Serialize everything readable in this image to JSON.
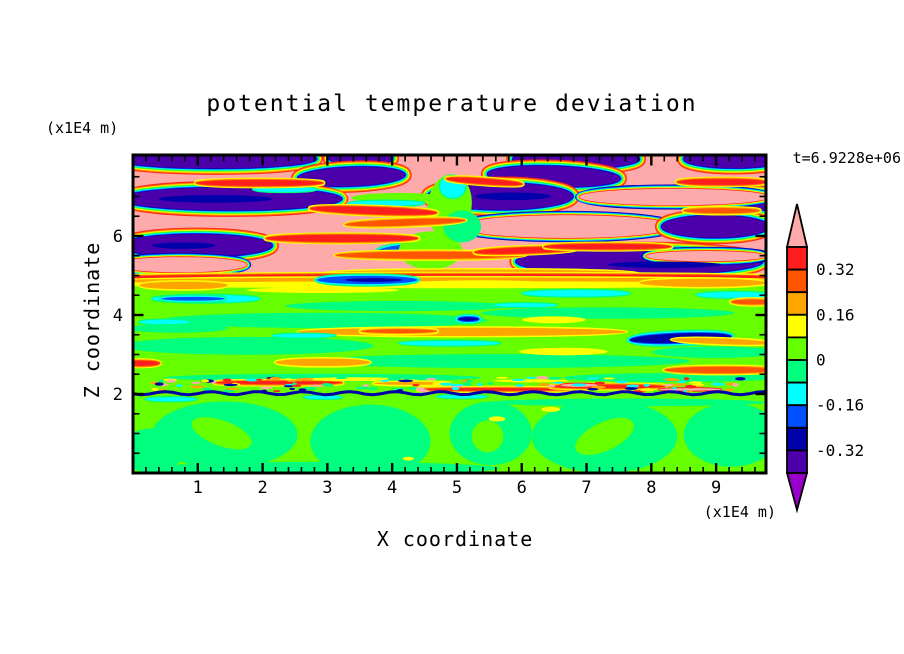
{
  "chart_data": {
    "type": "heatmap",
    "title": "potential temperature deviation",
    "xlabel": "X coordinate",
    "ylabel": "Z coordinate",
    "x_unit_label": "(x1E4 m)",
    "y_unit_label": "(x1E4 m)",
    "time_label": "t=6.9228e+06",
    "xlim": [
      0,
      9.77
    ],
    "ylim": [
      0,
      8.05
    ],
    "x_major_ticks": [
      1,
      2,
      3,
      4,
      5,
      6,
      7,
      8,
      9
    ],
    "x_minor_step": 0.2,
    "y_major_ticks": [
      2,
      4,
      6
    ],
    "y_minor_step": 0.5,
    "grid": false,
    "legend_position": "right-colorbar",
    "palette": {
      "over": "#ffaaaa",
      "red": "#ff1e1e",
      "orangered": "#ff5500",
      "orange": "#ffa500",
      "yellow": "#ffff00",
      "chartreuse": "#66ff00",
      "spring": "#00ff7f",
      "cyan": "#00ffff",
      "blue": "#0050ff",
      "navy": "#0000aa",
      "indigo": "#4b00ab",
      "under": "#9900cc"
    },
    "colorbar": {
      "levels": [
        0.4,
        0.32,
        0.24,
        0.16,
        0.08,
        0,
        -0.08,
        -0.16,
        -0.24,
        -0.32,
        -0.4
      ],
      "tick_labels": [
        "0.32",
        "0.16",
        "0",
        "-0.16",
        "-0.32"
      ],
      "segment_colors_top_to_bottom": [
        "red",
        "orangered",
        "orange",
        "yellow",
        "chartreuse",
        "spring",
        "cyan",
        "blue",
        "navy",
        "indigo"
      ],
      "over_arrow": "over",
      "under_arrow": "under"
    },
    "field": {
      "bases": [
        {
          "v0": 0.0,
          "v1": 0.41,
          "color": "over"
        },
        {
          "v0": 0.4,
          "v1": 1.0,
          "color": "chartreuse"
        }
      ],
      "shapes": [
        [
          "indigo",
          0.13,
          0.012,
          0.16,
          0.03,
          0
        ],
        [
          "indigo",
          0.36,
          0.01,
          0.05,
          0.022,
          0
        ],
        [
          "indigo",
          0.7,
          0.013,
          0.1,
          0.03,
          0
        ],
        [
          "indigo",
          0.95,
          0.013,
          0.08,
          0.028,
          0
        ],
        [
          "indigo",
          0.345,
          0.068,
          0.085,
          0.03,
          -2
        ],
        [
          "indigo",
          0.665,
          0.067,
          0.105,
          0.032,
          2
        ],
        [
          "indigo",
          0.155,
          0.138,
          0.175,
          0.036,
          0
        ],
        [
          "indigo",
          0.58,
          0.13,
          0.115,
          0.042,
          0
        ],
        [
          "indigo",
          0.975,
          0.145,
          0.055,
          0.03,
          0
        ],
        [
          "pink",
          0.855,
          0.132,
          0.15,
          0.026,
          0
        ],
        [
          "pink",
          0.685,
          0.225,
          0.17,
          0.036,
          0
        ],
        [
          "indigo",
          0.92,
          0.225,
          0.085,
          0.035,
          0
        ],
        [
          "indigo",
          0.1,
          0.285,
          0.12,
          0.036,
          0
        ],
        [
          "indigo",
          0.8,
          0.335,
          0.195,
          0.042,
          0
        ],
        [
          "pink",
          0.905,
          0.318,
          0.095,
          0.016,
          0
        ],
        [
          "pink",
          0.075,
          0.345,
          0.105,
          0.024,
          0
        ],
        [
          "blue",
          0.44,
          0.3,
          0.055,
          0.02,
          -3
        ],
        [
          "navycore",
          0.13,
          0.138,
          0.09,
          0.012,
          0
        ],
        [
          "navycore",
          0.6,
          0.13,
          0.06,
          0.012,
          0
        ],
        [
          "navycore",
          0.08,
          0.285,
          0.05,
          0.01,
          0
        ],
        [
          "navycore",
          0.84,
          0.345,
          0.09,
          0.01,
          0
        ],
        [
          "chartreuse",
          0.5,
          0.16,
          0.035,
          0.1,
          8
        ],
        [
          "chartreuse",
          0.47,
          0.3,
          0.05,
          0.06,
          0
        ],
        [
          "cyan",
          0.505,
          0.1,
          0.02,
          0.035,
          5
        ],
        [
          "chartreuse",
          0.42,
          0.135,
          0.075,
          0.016,
          0
        ],
        [
          "cyan",
          0.4,
          0.152,
          0.06,
          0.008,
          0
        ],
        [
          "cyan",
          0.24,
          0.108,
          0.05,
          0.008,
          0
        ],
        [
          "spring",
          0.52,
          0.225,
          0.03,
          0.05,
          0
        ],
        [
          "red",
          0.2,
          0.088,
          0.1,
          0.009,
          0
        ],
        [
          "red",
          0.555,
          0.083,
          0.06,
          0.008,
          4
        ],
        [
          "red",
          0.93,
          0.085,
          0.07,
          0.009,
          0
        ],
        [
          "red",
          0.38,
          0.175,
          0.1,
          0.011,
          2
        ],
        [
          "orangered",
          0.43,
          0.212,
          0.095,
          0.01,
          -2
        ],
        [
          "red",
          0.33,
          0.262,
          0.12,
          0.011,
          0
        ],
        [
          "orangered",
          0.47,
          0.315,
          0.15,
          0.011,
          0
        ],
        [
          "red",
          0.62,
          0.3,
          0.08,
          0.009,
          -2
        ],
        [
          "orange",
          0.55,
          0.372,
          0.25,
          0.012,
          0
        ],
        [
          "red",
          0.75,
          0.288,
          0.1,
          0.008,
          0
        ],
        [
          "orangered",
          0.93,
          0.175,
          0.06,
          0.008,
          0
        ],
        [
          "red",
          0.5,
          0.385,
          0.54,
          0.01,
          0
        ],
        [
          "orange",
          0.5,
          0.396,
          0.54,
          0.011,
          0
        ],
        [
          "yellow",
          0.5,
          0.408,
          0.54,
          0.011,
          0
        ],
        [
          "blue",
          0.37,
          0.393,
          0.08,
          0.013,
          0
        ],
        [
          "navycore",
          0.38,
          0.393,
          0.045,
          0.006,
          0
        ],
        [
          "orange",
          0.08,
          0.41,
          0.07,
          0.012,
          0
        ],
        [
          "orange",
          0.9,
          0.402,
          0.1,
          0.013,
          0
        ],
        [
          "yellow",
          0.3,
          0.425,
          0.12,
          0.009,
          0
        ],
        [
          "yellow",
          0.55,
          0.402,
          0.1,
          0.008,
          0
        ],
        [
          "cyan",
          0.115,
          0.452,
          0.085,
          0.012,
          0
        ],
        [
          "blue",
          0.095,
          0.452,
          0.05,
          0.006,
          0
        ],
        [
          "cyan",
          0.7,
          0.435,
          0.085,
          0.01,
          0
        ],
        [
          "cyan",
          0.95,
          0.44,
          0.06,
          0.009,
          0
        ],
        [
          "orangered",
          0.98,
          0.462,
          0.035,
          0.008,
          0
        ],
        [
          "spring",
          0.3,
          0.52,
          0.26,
          0.024,
          0
        ],
        [
          "spring",
          0.75,
          0.497,
          0.2,
          0.018,
          0
        ],
        [
          "spring",
          0.18,
          0.6,
          0.2,
          0.028,
          0
        ],
        [
          "spring",
          0.58,
          0.648,
          0.3,
          0.022,
          0
        ],
        [
          "spring",
          0.92,
          0.62,
          0.1,
          0.018,
          0
        ],
        [
          "spring",
          0.42,
          0.475,
          0.18,
          0.016,
          0
        ],
        [
          "spring",
          0.07,
          0.545,
          0.08,
          0.014,
          0
        ],
        [
          "spring",
          0.85,
          0.7,
          0.17,
          0.014,
          0
        ],
        [
          "spring",
          0.3,
          0.7,
          0.25,
          0.012,
          0
        ],
        [
          "yellow",
          0.665,
          0.518,
          0.05,
          0.011,
          0
        ],
        [
          "yellow",
          0.68,
          0.618,
          0.07,
          0.012,
          0
        ],
        [
          "orange",
          0.52,
          0.556,
          0.26,
          0.013,
          0
        ],
        [
          "orangered",
          0.42,
          0.554,
          0.06,
          0.006,
          0
        ],
        [
          "navy",
          0.53,
          0.516,
          0.016,
          0.006,
          0
        ],
        [
          "navy",
          0.865,
          0.576,
          0.08,
          0.015,
          -2
        ],
        [
          "orange",
          0.93,
          0.586,
          0.08,
          0.009,
          2
        ],
        [
          "orange",
          0.3,
          0.652,
          0.075,
          0.012,
          0
        ],
        [
          "orangered",
          0.93,
          0.676,
          0.09,
          0.01,
          0
        ],
        [
          "red",
          0.012,
          0.655,
          0.03,
          0.008,
          0
        ],
        [
          "cyan",
          0.5,
          0.592,
          0.08,
          0.007,
          0
        ],
        [
          "cyan",
          0.05,
          0.525,
          0.04,
          0.007,
          0
        ],
        [
          "cyan",
          0.62,
          0.472,
          0.05,
          0.006,
          0
        ],
        [
          "cyan",
          0.27,
          0.568,
          0.05,
          0.006,
          0
        ],
        [
          "red",
          0.23,
          0.716,
          0.1,
          0.0045,
          0
        ],
        [
          "red",
          0.57,
          0.737,
          0.12,
          0.0035,
          0
        ],
        [
          "red",
          0.75,
          0.728,
          0.09,
          0.005,
          0
        ],
        [
          "pinkspeck",
          0.705,
          0.724,
          0.03,
          0.005,
          0
        ],
        [
          "pinkspeck",
          0.88,
          0.737,
          0.05,
          0.004,
          0
        ],
        [
          "orange",
          0.44,
          0.718,
          0.06,
          0.005,
          0
        ],
        [
          "yellow",
          0.35,
          0.705,
          0.08,
          0.006,
          0
        ],
        [
          "yellow",
          0.63,
          0.71,
          0.06,
          0.005,
          0
        ],
        [
          "spring",
          0.145,
          0.88,
          0.115,
          0.105,
          0
        ],
        [
          "spring",
          0.375,
          0.9,
          0.095,
          0.115,
          0
        ],
        [
          "spring",
          0.565,
          0.875,
          0.065,
          0.1,
          0
        ],
        [
          "spring",
          0.745,
          0.885,
          0.115,
          0.115,
          0
        ],
        [
          "spring",
          0.945,
          0.88,
          0.075,
          0.1,
          0
        ],
        [
          "spring",
          0.78,
          0.778,
          0.22,
          0.012,
          0
        ],
        [
          "spring",
          0.3,
          0.985,
          0.28,
          0.02,
          0
        ],
        [
          "spring",
          0.03,
          0.93,
          0.05,
          0.07,
          0
        ],
        [
          "chartreuse",
          0.14,
          0.875,
          0.05,
          0.04,
          20
        ],
        [
          "chartreuse",
          0.56,
          0.885,
          0.025,
          0.05,
          0
        ],
        [
          "chartreuse",
          0.745,
          0.885,
          0.05,
          0.045,
          -25
        ],
        [
          "yellow",
          0.575,
          0.83,
          0.013,
          0.008,
          0
        ],
        [
          "yellow",
          0.66,
          0.8,
          0.015,
          0.008,
          0
        ],
        [
          "yellow",
          0.435,
          0.955,
          0.009,
          0.006,
          0
        ],
        [
          "cyan",
          0.06,
          0.768,
          0.04,
          0.006,
          0
        ],
        [
          "cyan",
          0.3,
          0.762,
          0.03,
          0.005,
          0
        ],
        [
          "cyan",
          0.52,
          0.76,
          0.04,
          0.0045,
          0
        ]
      ],
      "speckles": {
        "v0": 0.7,
        "v1": 0.744,
        "count": 120,
        "seed": 20,
        "colors": [
          "yellow",
          "orange",
          "red",
          "cyan",
          "navy",
          "spring",
          "pinkspeck"
        ]
      },
      "interface_line": {
        "v": 0.749,
        "color": "navy",
        "width": 3,
        "amp": 1.6,
        "wavelength": 46
      }
    }
  }
}
